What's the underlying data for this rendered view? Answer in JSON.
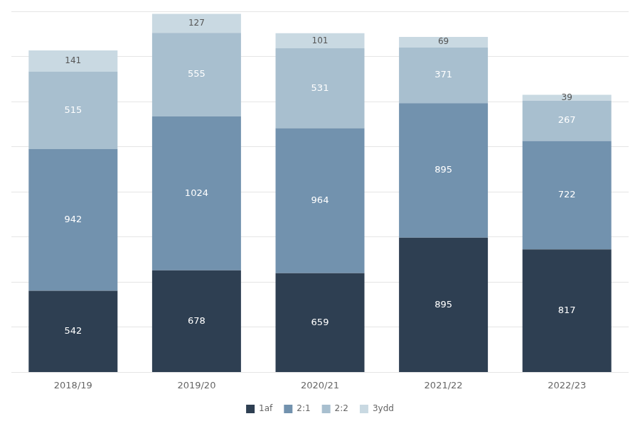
{
  "chart_data": {
    "type": "bar",
    "stacked": true,
    "categories": [
      "2018/19",
      "2019/20",
      "2020/21",
      "2021/22",
      "2022/23"
    ],
    "series": [
      {
        "name": "1af",
        "color": "#2e3f52",
        "values": [
          542,
          678,
          659,
          895,
          817
        ]
      },
      {
        "name": "2:1",
        "color": "#7292ae",
        "values": [
          942,
          1024,
          964,
          895,
          722
        ]
      },
      {
        "name": "2:2",
        "color": "#a8bfcf",
        "values": [
          515,
          555,
          531,
          371,
          267
        ]
      },
      {
        "name": "3ydd",
        "color": "#c9d9e2",
        "values": [
          141,
          127,
          101,
          69,
          39
        ]
      }
    ],
    "ylim": [
      0,
      2400
    ],
    "yticks": [
      0,
      300,
      600,
      900,
      1200,
      1500,
      1800,
      2100,
      2400
    ],
    "grid": true,
    "tick_labels": "x",
    "data_labels": true,
    "legend": "bottom"
  }
}
